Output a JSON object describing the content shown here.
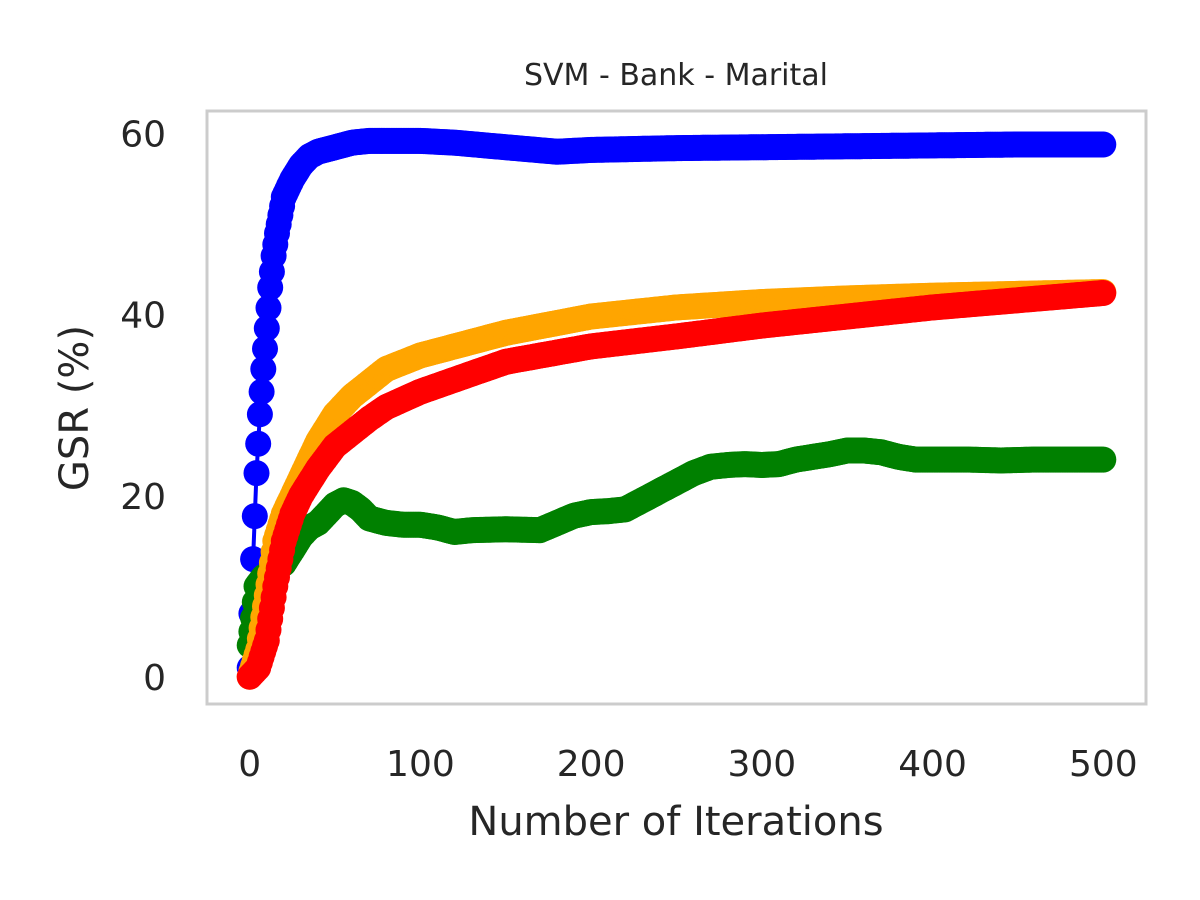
{
  "chart_data": {
    "type": "line",
    "title": "SVM - Bank - Marital",
    "xlabel": "Number of Iterations",
    "ylabel": "GSR (%)",
    "xlim": [
      -25,
      525
    ],
    "ylim": [
      -3,
      62.5
    ],
    "xticks": [
      0,
      100,
      200,
      300,
      400,
      500
    ],
    "yticks": [
      0,
      20,
      40,
      60
    ],
    "grid": false,
    "legend": "none",
    "frame_color": "#cccccc",
    "series": [
      {
        "color": "#0000ff",
        "x": [
          0,
          2,
          4,
          6,
          8,
          10,
          12,
          14,
          16,
          18,
          20,
          25,
          30,
          35,
          40,
          50,
          60,
          70,
          80,
          100,
          120,
          150,
          180,
          200,
          250,
          300,
          350,
          400,
          450,
          500
        ],
        "y": [
          1,
          13,
          22.5,
          29,
          34,
          38.5,
          43,
          46.5,
          49,
          51,
          53,
          55,
          56.5,
          57.5,
          58,
          58.5,
          59,
          59.2,
          59.2,
          59.2,
          59,
          58.5,
          58,
          58.2,
          58.4,
          58.5,
          58.6,
          58.7,
          58.8,
          58.8
        ]
      },
      {
        "color": "#ffa500",
        "x": [
          0,
          5,
          10,
          15,
          20,
          30,
          40,
          50,
          60,
          80,
          100,
          150,
          200,
          250,
          300,
          350,
          400,
          450,
          500
        ],
        "y": [
          0,
          3,
          9,
          15,
          18,
          22,
          26,
          29,
          31,
          34,
          35.5,
          38,
          39.8,
          40.8,
          41.4,
          41.8,
          42.1,
          42.3,
          42.5
        ]
      },
      {
        "color": "#ff0000",
        "x": [
          0,
          5,
          10,
          15,
          20,
          25,
          30,
          40,
          50,
          60,
          70,
          80,
          100,
          150,
          200,
          250,
          300,
          350,
          400,
          450,
          500
        ],
        "y": [
          0,
          1,
          4,
          10,
          15,
          18,
          20,
          23,
          25.5,
          27,
          28.5,
          29.8,
          31.5,
          34.8,
          36.5,
          37.6,
          38.8,
          39.8,
          40.8,
          41.6,
          42.4
        ]
      },
      {
        "color": "#008000",
        "x": [
          0,
          2,
          4,
          8,
          12,
          16,
          20,
          25,
          30,
          35,
          40,
          45,
          50,
          55,
          60,
          65,
          70,
          80,
          90,
          100,
          110,
          120,
          130,
          150,
          170,
          180,
          190,
          200,
          210,
          220,
          230,
          240,
          250,
          260,
          270,
          280,
          290,
          300,
          310,
          320,
          330,
          340,
          350,
          360,
          370,
          380,
          390,
          400,
          420,
          440,
          460,
          480,
          500
        ],
        "y": [
          3.5,
          6.5,
          10,
          11,
          11.5,
          12,
          12.5,
          14,
          15.5,
          16.5,
          17,
          18,
          19,
          19.5,
          19.2,
          18.5,
          17.5,
          17,
          16.8,
          16.8,
          16.5,
          16,
          16.2,
          16.3,
          16.2,
          17,
          17.8,
          18.2,
          18.3,
          18.5,
          19.5,
          20.5,
          21.5,
          22.5,
          23.2,
          23.4,
          23.5,
          23.4,
          23.5,
          24,
          24.3,
          24.6,
          25,
          25,
          24.8,
          24.3,
          24,
          24,
          24,
          23.9,
          24,
          24,
          24
        ]
      }
    ]
  }
}
